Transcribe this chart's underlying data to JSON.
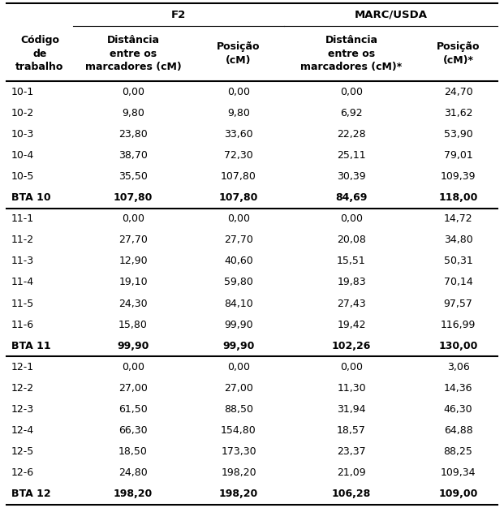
{
  "col_headers_row2": [
    "Código\nde\ntrabalho",
    "Distância\nentre os\nmarcadores (cM)",
    "Posição\n(cM)",
    "Distância\nentre os\nmarcadores (cM)*",
    "Posição\n(cM)*"
  ],
  "rows": [
    [
      "10-1",
      "0,00",
      "0,00",
      "0,00",
      "24,70",
      false
    ],
    [
      "10-2",
      "9,80",
      "9,80",
      "6,92",
      "31,62",
      false
    ],
    [
      "10-3",
      "23,80",
      "33,60",
      "22,28",
      "53,90",
      false
    ],
    [
      "10-4",
      "38,70",
      "72,30",
      "25,11",
      "79,01",
      false
    ],
    [
      "10-5",
      "35,50",
      "107,80",
      "30,39",
      "109,39",
      false
    ],
    [
      "BTA 10",
      "107,80",
      "107,80",
      "84,69",
      "118,00",
      true
    ],
    [
      "11-1",
      "0,00",
      "0,00",
      "0,00",
      "14,72",
      false
    ],
    [
      "11-2",
      "27,70",
      "27,70",
      "20,08",
      "34,80",
      false
    ],
    [
      "11-3",
      "12,90",
      "40,60",
      "15,51",
      "50,31",
      false
    ],
    [
      "11-4",
      "19,10",
      "59,80",
      "19,83",
      "70,14",
      false
    ],
    [
      "11-5",
      "24,30",
      "84,10",
      "27,43",
      "97,57",
      false
    ],
    [
      "11-6",
      "15,80",
      "99,90",
      "19,42",
      "116,99",
      false
    ],
    [
      "BTA 11",
      "99,90",
      "99,90",
      "102,26",
      "130,00",
      true
    ],
    [
      "12-1",
      "0,00",
      "0,00",
      "0,00",
      "3,06",
      false
    ],
    [
      "12-2",
      "27,00",
      "27,00",
      "11,30",
      "14,36",
      false
    ],
    [
      "12-3",
      "61,50",
      "88,50",
      "31,94",
      "46,30",
      false
    ],
    [
      "12-4",
      "66,30",
      "154,80",
      "18,57",
      "64,88",
      false
    ],
    [
      "12-5",
      "18,50",
      "173,30",
      "23,37",
      "88,25",
      false
    ],
    [
      "12-6",
      "24,80",
      "198,20",
      "21,09",
      "109,34",
      false
    ],
    [
      "BTA 12",
      "198,20",
      "198,20",
      "106,28",
      "109,00",
      true
    ]
  ],
  "bg_color": "#ffffff",
  "text_color": "#000000",
  "line_color": "#000000",
  "header_fontsize": 9.0,
  "data_fontsize": 9.0
}
